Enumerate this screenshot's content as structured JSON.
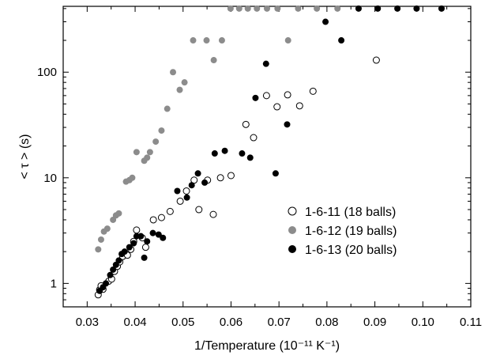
{
  "chart_data": {
    "type": "scatter",
    "title": "",
    "xlabel": "1/Temperature (10⁻¹¹ K⁻¹)",
    "ylabel": "< τ > (s)",
    "xlim": [
      0.025,
      0.11
    ],
    "ylim": [
      0.6,
      420
    ],
    "y_scale": "log",
    "x_ticks": [
      "0.03",
      "0.04",
      "0.05",
      "0.06",
      "0.07",
      "0.08",
      "0.09",
      "0.10",
      "0.11"
    ],
    "y_ticks": [
      "1",
      "10",
      "100"
    ],
    "grid": false,
    "legend_position": "right",
    "series": [
      {
        "name": "1-6-11 (18 balls)",
        "marker": "open-circle",
        "color": "#000000",
        "points": [
          [
            0.0323,
            0.78
          ],
          [
            0.0326,
            0.87
          ],
          [
            0.0329,
            0.95
          ],
          [
            0.0333,
            0.88
          ],
          [
            0.0345,
            1.05
          ],
          [
            0.0351,
            1.1
          ],
          [
            0.0357,
            1.3
          ],
          [
            0.0363,
            1.45
          ],
          [
            0.0368,
            1.6
          ],
          [
            0.0374,
            1.8
          ],
          [
            0.0384,
            1.85
          ],
          [
            0.0391,
            2.1
          ],
          [
            0.0397,
            2.5
          ],
          [
            0.0403,
            3.2
          ],
          [
            0.0415,
            2.7
          ],
          [
            0.0422,
            2.2
          ],
          [
            0.0438,
            4.0
          ],
          [
            0.0455,
            4.2
          ],
          [
            0.0473,
            4.8
          ],
          [
            0.0494,
            6.0
          ],
          [
            0.0507,
            7.5
          ],
          [
            0.0523,
            9.5
          ],
          [
            0.0533,
            5.0
          ],
          [
            0.0551,
            9.5
          ],
          [
            0.0563,
            4.5
          ],
          [
            0.0578,
            10.0
          ],
          [
            0.06,
            10.5
          ],
          [
            0.0631,
            32.0
          ],
          [
            0.0647,
            24.0
          ],
          [
            0.0674,
            60.0
          ],
          [
            0.0696,
            47.0
          ],
          [
            0.0718,
            61.0
          ],
          [
            0.0743,
            48.0
          ],
          [
            0.0771,
            66.0
          ],
          [
            0.0903,
            130.0
          ]
        ]
      },
      {
        "name": "1-6-12 (19 balls)",
        "marker": "filled-circle",
        "color": "#8c8c8c",
        "points": [
          [
            0.0323,
            2.1
          ],
          [
            0.0329,
            2.6
          ],
          [
            0.0335,
            3.1
          ],
          [
            0.0342,
            3.3
          ],
          [
            0.0354,
            4.0
          ],
          [
            0.036,
            4.4
          ],
          [
            0.0366,
            4.6
          ],
          [
            0.0381,
            9.2
          ],
          [
            0.0388,
            9.5
          ],
          [
            0.0394,
            10.0
          ],
          [
            0.0403,
            17.5
          ],
          [
            0.0419,
            14.5
          ],
          [
            0.0425,
            15.5
          ],
          [
            0.0431,
            17.5
          ],
          [
            0.0443,
            22.0
          ],
          [
            0.0455,
            28.0
          ],
          [
            0.0467,
            45.0
          ],
          [
            0.0479,
            100.0
          ],
          [
            0.0493,
            68.0
          ],
          [
            0.0503,
            80.0
          ],
          [
            0.0521,
            200.0
          ],
          [
            0.0549,
            200.0
          ],
          [
            0.0564,
            130.0
          ],
          [
            0.0581,
            200.0
          ],
          [
            0.0599,
            400.0
          ],
          [
            0.0617,
            400.0
          ],
          [
            0.0635,
            400.0
          ],
          [
            0.0654,
            400.0
          ],
          [
            0.0675,
            400.0
          ],
          [
            0.0697,
            400.0
          ],
          [
            0.0719,
            200.0
          ],
          [
            0.074,
            400.0
          ],
          [
            0.0779,
            400.0
          ],
          [
            0.0822,
            400.0
          ]
        ]
      },
      {
        "name": "1-6-13 (20 balls)",
        "marker": "filled-circle",
        "color": "#000000",
        "points": [
          [
            0.0326,
            0.85
          ],
          [
            0.0333,
            0.92
          ],
          [
            0.0339,
            1.0
          ],
          [
            0.0348,
            1.2
          ],
          [
            0.0354,
            1.35
          ],
          [
            0.036,
            1.5
          ],
          [
            0.0366,
            1.65
          ],
          [
            0.0372,
            1.9
          ],
          [
            0.0378,
            2.0
          ],
          [
            0.0388,
            2.2
          ],
          [
            0.0397,
            2.4
          ],
          [
            0.0403,
            2.8
          ],
          [
            0.0412,
            2.8
          ],
          [
            0.0419,
            1.75
          ],
          [
            0.0425,
            2.5
          ],
          [
            0.0437,
            3.0
          ],
          [
            0.0449,
            2.9
          ],
          [
            0.0458,
            2.7
          ],
          [
            0.0488,
            7.5
          ],
          [
            0.0508,
            6.5
          ],
          [
            0.0518,
            8.5
          ],
          [
            0.0531,
            11.0
          ],
          [
            0.0545,
            9.0
          ],
          [
            0.0566,
            17.0
          ],
          [
            0.0587,
            18.0
          ],
          [
            0.0623,
            17.0
          ],
          [
            0.064,
            15.5
          ],
          [
            0.0651,
            57.0
          ],
          [
            0.0673,
            120.0
          ],
          [
            0.0693,
            11.0
          ],
          [
            0.0717,
            32.0
          ],
          [
            0.0797,
            300.0
          ],
          [
            0.083,
            200.0
          ],
          [
            0.0866,
            400.0
          ],
          [
            0.0906,
            400.0
          ],
          [
            0.0947,
            400.0
          ],
          [
            0.0987,
            400.0
          ],
          [
            0.1039,
            400.0
          ]
        ]
      }
    ]
  }
}
